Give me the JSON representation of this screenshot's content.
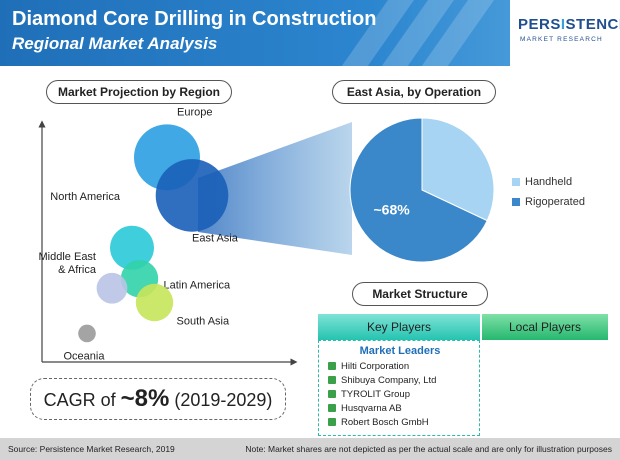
{
  "header": {
    "title": "Diamond Core Drilling in Construction",
    "subtitle": "Regional Market Analysis",
    "logo": {
      "main_a": "PERS",
      "main_b": "I",
      "main_c": "STENCE",
      "sub": "MARKET RESEARCH"
    },
    "colors": {
      "primary": "#1f6fb8",
      "accent": "#3aa0d8"
    }
  },
  "bubble_section": {
    "label": "Market Projection by Region"
  },
  "pie_section": {
    "label": "East Asia, by Operation"
  },
  "structure": {
    "label": "Market Structure",
    "key_players": "Key Players",
    "local_players": "Local Players",
    "leaders_title": "Market Leaders",
    "leaders": [
      "Hilti Corporation",
      "Shibuya Company, Ltd",
      "TYROLIT Group",
      "Husqvarna AB",
      "Robert Bosch GmbH"
    ]
  },
  "cagr": {
    "prefix": "CAGR of ",
    "value": "~8%",
    "period": " (2019-2029)"
  },
  "footer": {
    "source": "Source: Persistence Market Research, 2019",
    "note": "Note: Market shares are not depicted as per the actual scale and are only for illustration purposes"
  },
  "chart_data": [
    {
      "type": "scatter",
      "title": "Market Projection by Region",
      "xlabel": "",
      "ylabel": "",
      "series": [
        {
          "name": "Europe",
          "x": 5.0,
          "y": 8.6,
          "size": 3.0,
          "color": "#2a9ee2"
        },
        {
          "name": "East Asia",
          "x": 6.0,
          "y": 7.0,
          "size": 3.3,
          "color": "#1a5fb8"
        },
        {
          "name": "North America",
          "x": 3.6,
          "y": 4.8,
          "size": 2.0,
          "color": "#29c9d8"
        },
        {
          "name": "Latin America",
          "x": 3.9,
          "y": 3.5,
          "size": 1.7,
          "color": "#31d3a8"
        },
        {
          "name": "Middle East & Africa",
          "x": 2.8,
          "y": 3.1,
          "size": 1.4,
          "color": "#b9c4e6"
        },
        {
          "name": "South Asia",
          "x": 4.5,
          "y": 2.5,
          "size": 1.7,
          "color": "#c6e65a"
        },
        {
          "name": "Oceania",
          "x": 1.8,
          "y": 1.2,
          "size": 0.8,
          "color": "#9a9a9a"
        }
      ]
    },
    {
      "type": "pie",
      "title": "East Asia, by Operation",
      "slices": [
        {
          "name": "Handheld",
          "value": 32,
          "color": "#a6d4f2",
          "label": ""
        },
        {
          "name": "Rigoperated",
          "value": 68,
          "color": "#3a87c9",
          "label": "~68%"
        }
      ]
    }
  ]
}
